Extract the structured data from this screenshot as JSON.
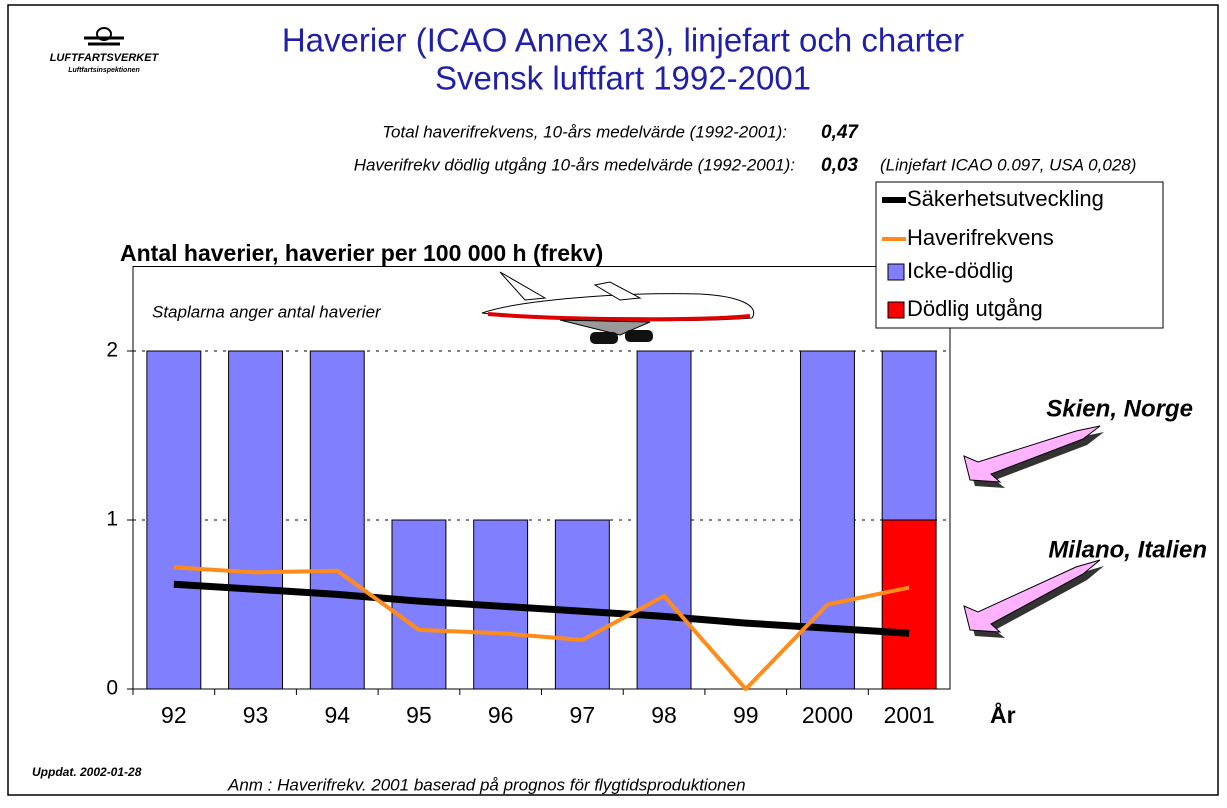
{
  "header": {
    "logo": "LUFTFARTSVERKET",
    "logo_sub": "Luftfartsinspektionen",
    "title_line1": "Haverier (ICAO Annex 13), linjefart och charter",
    "title_line2": "Svensk luftfart 1992-2001"
  },
  "stats": [
    {
      "label": "Total haverifrekvens,  10-års medelvärde (1992-2001):",
      "value": "0,47"
    },
    {
      "label": "Haverifrekv dödlig utgång 10-års medelvärde (1992-2001):",
      "value": "0,03",
      "note": "(Linjefart ICAO 0.097, USA  0,028)"
    }
  ],
  "chart_data": {
    "type": "bar",
    "title": "Antal haverier, haverier per 100 000 h (frekv)",
    "subtitle": "Staplarna anger antal haverier",
    "x_label": "År",
    "categories": [
      "92",
      "93",
      "94",
      "95",
      "96",
      "97",
      "98",
      "99",
      "2000",
      "2001"
    ],
    "series": [
      {
        "name": "Säkerhetsutveckling",
        "type": "line",
        "color": "#000000",
        "values": [
          0.62,
          0.59,
          0.56,
          0.52,
          0.49,
          0.46,
          0.43,
          0.39,
          0.36,
          0.33
        ]
      },
      {
        "name": "Haverifrekvens",
        "type": "line",
        "color": "#ff8c1a",
        "values": [
          0.72,
          0.69,
          0.7,
          0.35,
          0.33,
          0.29,
          0.55,
          0,
          0.5,
          0.6
        ]
      },
      {
        "name": "Icke-dödlig",
        "type": "bar",
        "color": "#8080ff",
        "values": [
          2,
          2,
          2,
          1,
          1,
          1,
          2,
          0,
          2,
          1
        ]
      },
      {
        "name": "Dödlig utgång",
        "type": "bar",
        "color": "#ff0000",
        "values": [
          0,
          0,
          0,
          0,
          0,
          0,
          0,
          0,
          0,
          1
        ]
      }
    ],
    "ylim": [
      0,
      2.5
    ],
    "yticks": [
      0,
      1,
      2
    ],
    "grid": true,
    "legend": "top-right",
    "annotations": [
      "Skien, Norge",
      "Milano, Italien"
    ]
  },
  "footer": {
    "updated": "Uppdat. 2002-01-28",
    "note": "Anm : Haverifrekv. 2001 baserad på prognos för flygtidsproduktionen"
  }
}
